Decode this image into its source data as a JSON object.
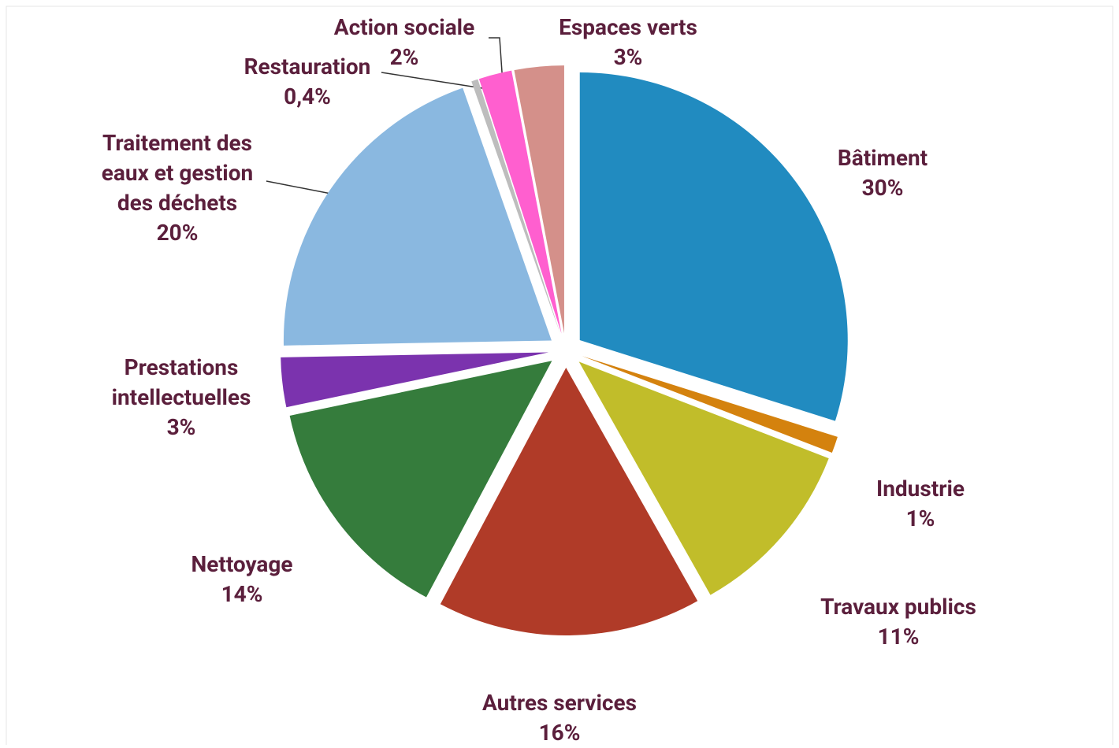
{
  "chart_data": {
    "type": "pie",
    "categories": [
      "Bâtiment",
      "Industrie",
      "Travaux publics",
      "Autres services",
      "Nettoyage",
      "Prestations intellectuelles",
      "Traitement des eaux et gestion des déchets",
      "Restauration",
      "Action sociale",
      "Espaces verts"
    ],
    "values": [
      30,
      1,
      11,
      16,
      14,
      3,
      20,
      0.4,
      2,
      3
    ],
    "value_labels": [
      "30%",
      "1%",
      "11%",
      "16%",
      "14%",
      "3%",
      "20%",
      "0,4%",
      "2%",
      "3%"
    ],
    "colors": [
      "#218bc0",
      "#d4820e",
      "#c1bd2a",
      "#b03b28",
      "#357c3c",
      "#7b33ae",
      "#8ab8e0",
      "#bdbdbd",
      "#ff5fcf",
      "#d4908a"
    ]
  }
}
